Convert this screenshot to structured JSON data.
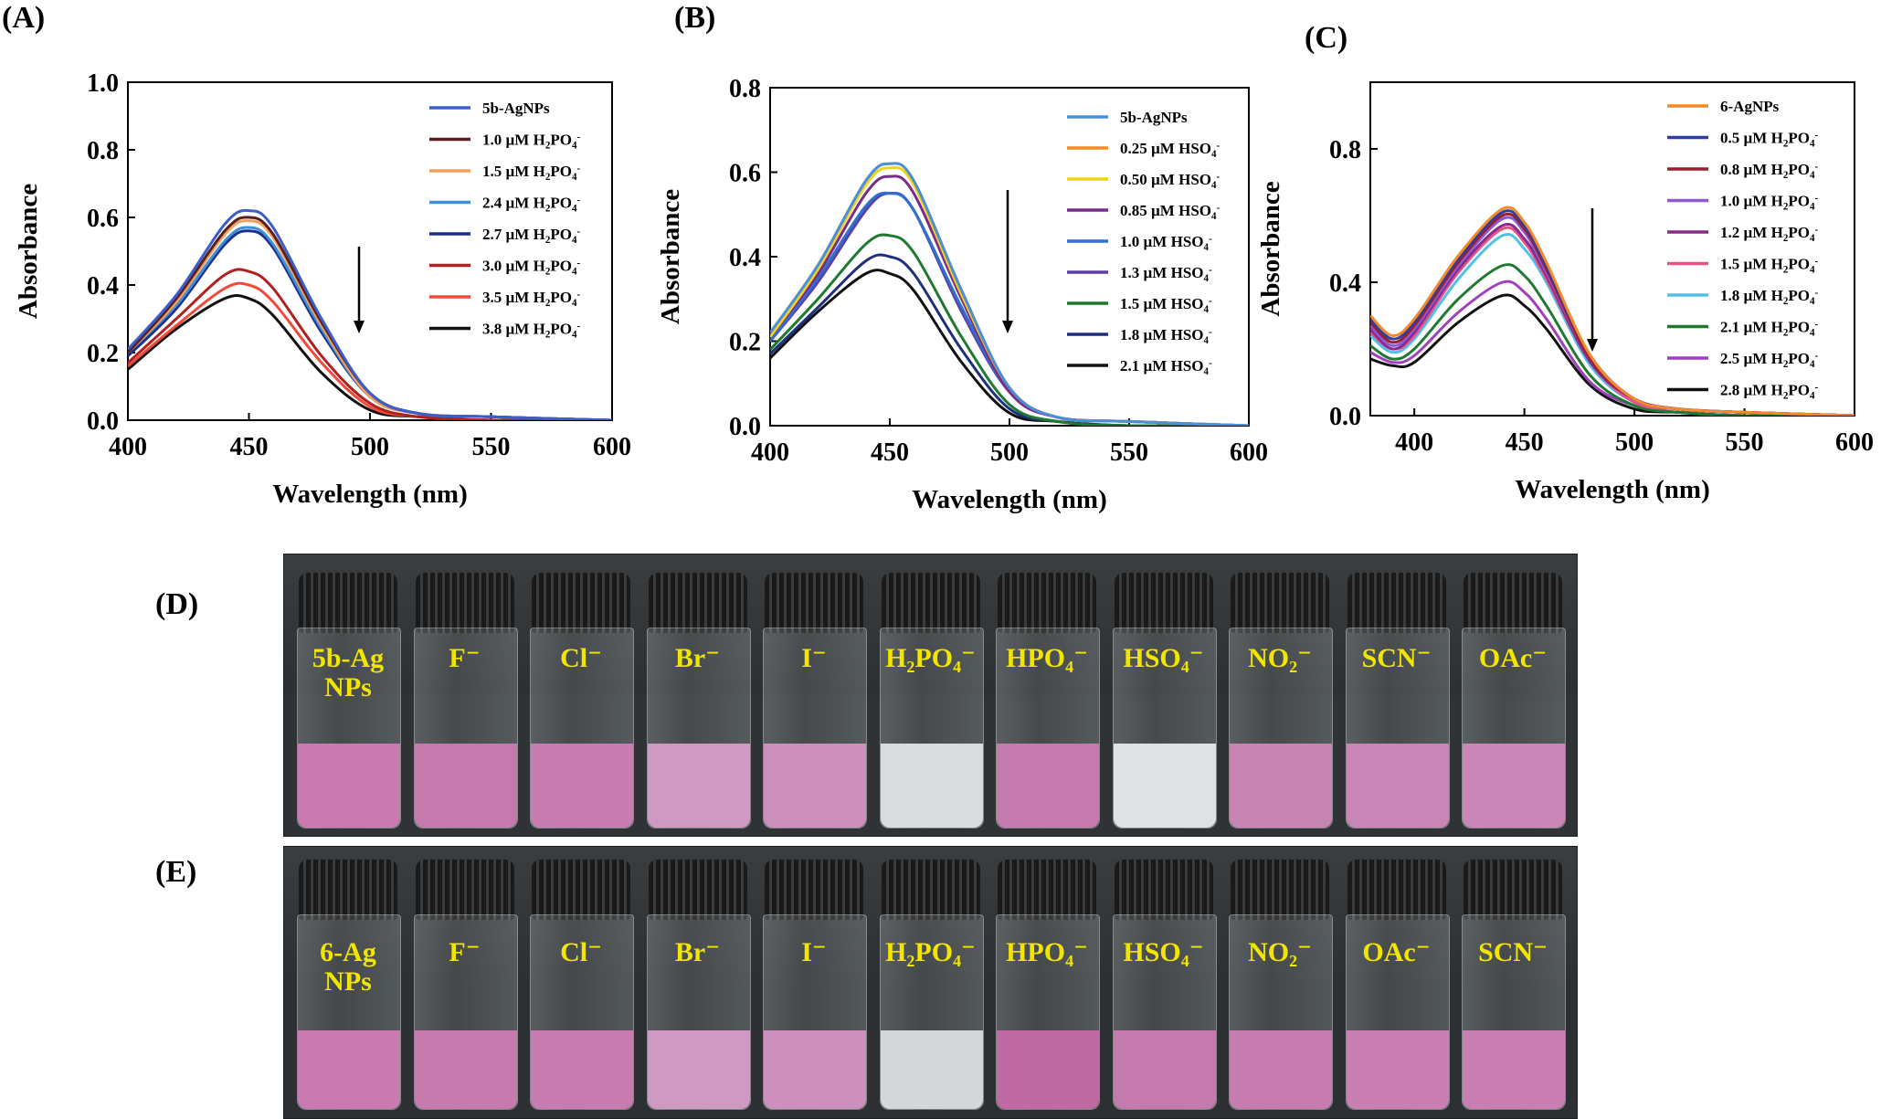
{
  "panel_labels": {
    "A": "(A)",
    "B": "(B)",
    "C": "(C)",
    "D": "(D)",
    "E": "(E)"
  },
  "chart_data": [
    {
      "type": "line",
      "xlabel": "Wavelength (nm)",
      "ylabel": "Absorbance",
      "xlim": [
        400,
        600
      ],
      "ylim": [
        0,
        1.0
      ],
      "xticks": [
        "400",
        "450",
        "500",
        "550",
        "600"
      ],
      "yticks": [
        "0.0",
        "0.2",
        "0.4",
        "0.6",
        "0.8",
        "1.0"
      ],
      "legend_position": "top-right",
      "x": [
        400,
        420,
        440,
        450,
        460,
        480,
        500,
        520,
        550,
        600
      ],
      "series": [
        {
          "name": "5b-AgNPs",
          "color": "#3a5fcd",
          "values": [
            0.21,
            0.37,
            0.58,
            0.62,
            0.57,
            0.3,
            0.08,
            0.02,
            0.01,
            0.0
          ]
        },
        {
          "name": "1.0 µM H2PO4-",
          "color": "#5a1f1f",
          "values": [
            0.2,
            0.36,
            0.56,
            0.6,
            0.55,
            0.29,
            0.08,
            0.02,
            0.01,
            0.0
          ]
        },
        {
          "name": "1.5 µM H2PO4-",
          "color": "#f2a05a",
          "values": [
            0.2,
            0.35,
            0.55,
            0.59,
            0.54,
            0.28,
            0.07,
            0.02,
            0.01,
            0.0
          ]
        },
        {
          "name": "2.4 µM H2PO4-",
          "color": "#3c8fd8",
          "values": [
            0.2,
            0.34,
            0.53,
            0.57,
            0.52,
            0.27,
            0.07,
            0.02,
            0.01,
            0.0
          ]
        },
        {
          "name": "2.7 µM H2PO4-",
          "color": "#1b2f8a",
          "values": [
            0.19,
            0.33,
            0.52,
            0.56,
            0.51,
            0.26,
            0.07,
            0.02,
            0.01,
            0.0
          ]
        },
        {
          "name": "3.0 µM H2PO4-",
          "color": "#b02020",
          "values": [
            0.17,
            0.3,
            0.43,
            0.44,
            0.39,
            0.19,
            0.05,
            0.01,
            0.0,
            0.0
          ]
        },
        {
          "name": "3.5 µM H2PO4-",
          "color": "#f04a3a",
          "values": [
            0.16,
            0.28,
            0.39,
            0.4,
            0.35,
            0.17,
            0.04,
            0.01,
            0.0,
            0.0
          ]
        },
        {
          "name": "3.8 µM H2PO4-",
          "color": "#111111",
          "values": [
            0.15,
            0.27,
            0.36,
            0.36,
            0.31,
            0.14,
            0.03,
            0.01,
            0.0,
            0.0
          ]
        }
      ]
    },
    {
      "type": "line",
      "xlabel": "Wavelength (nm)",
      "ylabel": "Absorbance",
      "xlim": [
        400,
        600
      ],
      "ylim": [
        0,
        0.8
      ],
      "xticks": [
        "400",
        "450",
        "500",
        "550",
        "600"
      ],
      "yticks": [
        "0.0",
        "0.2",
        "0.4",
        "0.6",
        "0.8"
      ],
      "legend_position": "top-right",
      "x": [
        400,
        420,
        440,
        450,
        460,
        480,
        500,
        520,
        550,
        600
      ],
      "series": [
        {
          "name": "5b-AgNPs",
          "color": "#4a90d9",
          "values": [
            0.22,
            0.38,
            0.58,
            0.62,
            0.58,
            0.32,
            0.09,
            0.02,
            0.01,
            0.0
          ]
        },
        {
          "name": "0.25 µM HSO4-",
          "color": "#f58a2a",
          "values": [
            0.22,
            0.38,
            0.58,
            0.62,
            0.58,
            0.32,
            0.09,
            0.02,
            0.01,
            0.0
          ]
        },
        {
          "name": "0.50 µM HSO4-",
          "color": "#f2d21a",
          "values": [
            0.21,
            0.37,
            0.57,
            0.61,
            0.57,
            0.31,
            0.09,
            0.02,
            0.01,
            0.0
          ]
        },
        {
          "name": "0.85 µM HSO4-",
          "color": "#7a2a8a",
          "values": [
            0.21,
            0.36,
            0.55,
            0.59,
            0.55,
            0.3,
            0.08,
            0.02,
            0.01,
            0.0
          ]
        },
        {
          "name": "1.0 µM HSO4-",
          "color": "#2f6fd0",
          "values": [
            0.2,
            0.35,
            0.52,
            0.55,
            0.51,
            0.28,
            0.08,
            0.02,
            0.01,
            0.0
          ]
        },
        {
          "name": "1.3 µM HSO4-",
          "color": "#5a3fa8",
          "values": [
            0.2,
            0.34,
            0.51,
            0.55,
            0.51,
            0.27,
            0.08,
            0.02,
            0.01,
            0.0
          ]
        },
        {
          "name": "1.5 µM HSO4-",
          "color": "#1f7a2f",
          "values": [
            0.18,
            0.3,
            0.43,
            0.45,
            0.41,
            0.21,
            0.05,
            0.01,
            0.0,
            0.0
          ]
        },
        {
          "name": "1.8 µM HSO4-",
          "color": "#1e2f80",
          "values": [
            0.17,
            0.28,
            0.39,
            0.4,
            0.36,
            0.18,
            0.04,
            0.01,
            0.0,
            0.0
          ]
        },
        {
          "name": "2.1 µM HSO4-",
          "color": "#111111",
          "values": [
            0.16,
            0.27,
            0.36,
            0.36,
            0.32,
            0.15,
            0.03,
            0.01,
            0.0,
            0.0
          ]
        }
      ]
    },
    {
      "type": "line",
      "xlabel": "Wavelength (nm)",
      "ylabel": "Absorbance",
      "xlim": [
        380,
        600
      ],
      "ylim": [
        0,
        1.0
      ],
      "xticks": [
        "400",
        "450",
        "500",
        "550",
        "600"
      ],
      "yticks": [
        "0.0",
        "0.4",
        "0.8"
      ],
      "legend_position": "top-right",
      "x": [
        380,
        390,
        400,
        420,
        440,
        450,
        460,
        480,
        500,
        520,
        550,
        600
      ],
      "series": [
        {
          "name": "6-AgNPs",
          "color": "#f58a2a",
          "values": [
            0.3,
            0.24,
            0.29,
            0.48,
            0.62,
            0.58,
            0.46,
            0.18,
            0.05,
            0.02,
            0.01,
            0.0
          ]
        },
        {
          "name": "0.5 µM H2PO4-",
          "color": "#2a3fa8",
          "values": [
            0.29,
            0.23,
            0.28,
            0.47,
            0.61,
            0.57,
            0.45,
            0.18,
            0.05,
            0.02,
            0.01,
            0.0
          ]
        },
        {
          "name": "0.8 µM H2PO4-",
          "color": "#9a1f2a",
          "values": [
            0.28,
            0.22,
            0.27,
            0.46,
            0.6,
            0.56,
            0.44,
            0.17,
            0.05,
            0.02,
            0.01,
            0.0
          ]
        },
        {
          "name": "1.0 µM H2PO4-",
          "color": "#8a5ad8",
          "values": [
            0.27,
            0.21,
            0.26,
            0.45,
            0.59,
            0.55,
            0.43,
            0.17,
            0.05,
            0.02,
            0.01,
            0.0
          ]
        },
        {
          "name": "1.2 µM H2PO4-",
          "color": "#8a2a8a",
          "values": [
            0.26,
            0.2,
            0.25,
            0.44,
            0.57,
            0.53,
            0.42,
            0.16,
            0.05,
            0.02,
            0.01,
            0.0
          ]
        },
        {
          "name": "1.5 µM H2PO4-",
          "color": "#e8508a",
          "values": [
            0.25,
            0.2,
            0.24,
            0.43,
            0.56,
            0.52,
            0.41,
            0.16,
            0.04,
            0.02,
            0.01,
            0.0
          ]
        },
        {
          "name": "1.8 µM H2PO4-",
          "color": "#4fc0e8",
          "values": [
            0.24,
            0.19,
            0.23,
            0.41,
            0.54,
            0.5,
            0.4,
            0.15,
            0.04,
            0.02,
            0.01,
            0.0
          ]
        },
        {
          "name": "2.1 µM H2PO4-",
          "color": "#1f7a2f",
          "values": [
            0.21,
            0.17,
            0.2,
            0.35,
            0.45,
            0.42,
            0.33,
            0.12,
            0.03,
            0.01,
            0.0,
            0.0
          ]
        },
        {
          "name": "2.5 µM H2PO4-",
          "color": "#a040c0",
          "values": [
            0.19,
            0.16,
            0.18,
            0.31,
            0.4,
            0.37,
            0.29,
            0.1,
            0.03,
            0.01,
            0.0,
            0.0
          ]
        },
        {
          "name": "2.8 µM H2PO4-",
          "color": "#111111",
          "values": [
            0.17,
            0.15,
            0.16,
            0.28,
            0.36,
            0.33,
            0.26,
            0.09,
            0.02,
            0.01,
            0.0,
            0.0
          ]
        }
      ]
    }
  ],
  "photos": {
    "D": {
      "vials": [
        {
          "label": "5b-Ag\nNPs",
          "liquid": "#c97ab0"
        },
        {
          "label": "F⁻",
          "liquid": "#c57aae"
        },
        {
          "label": "Cl⁻",
          "liquid": "#c87db2"
        },
        {
          "label": "Br⁻",
          "liquid": "#cf9ac2"
        },
        {
          "label": "I⁻",
          "liquid": "#cd8fbc"
        },
        {
          "label": "H₂PO₄⁻",
          "liquid": "#d8dcdd"
        },
        {
          "label": "HPO₄⁻",
          "liquid": "#c57aad"
        },
        {
          "label": "HSO₄⁻",
          "liquid": "#dfe1e2"
        },
        {
          "label": "NO₂⁻",
          "liquid": "#c785b4"
        },
        {
          "label": "SCN⁻",
          "liquid": "#c985b6"
        },
        {
          "label": "OAc⁻",
          "liquid": "#c986b6"
        }
      ]
    },
    "E": {
      "vials": [
        {
          "label": "6-Ag\nNPs",
          "liquid": "#c97ab0"
        },
        {
          "label": "F⁻",
          "liquid": "#c77aae"
        },
        {
          "label": "Cl⁻",
          "liquid": "#c87db2"
        },
        {
          "label": "Br⁻",
          "liquid": "#cf9ac2"
        },
        {
          "label": "I⁻",
          "liquid": "#cd8fbc"
        },
        {
          "label": "H₂PO₄⁻",
          "liquid": "#d3d7d8"
        },
        {
          "label": "HPO₄⁻",
          "liquid": "#bf6aa2"
        },
        {
          "label": "HSO₄⁻",
          "liquid": "#c57aae"
        },
        {
          "label": "NO₂⁻",
          "liquid": "#c67cae"
        },
        {
          "label": "OAc⁻",
          "liquid": "#c97fb1"
        },
        {
          "label": "SCN⁻",
          "liquid": "#c97fb1"
        }
      ]
    }
  }
}
